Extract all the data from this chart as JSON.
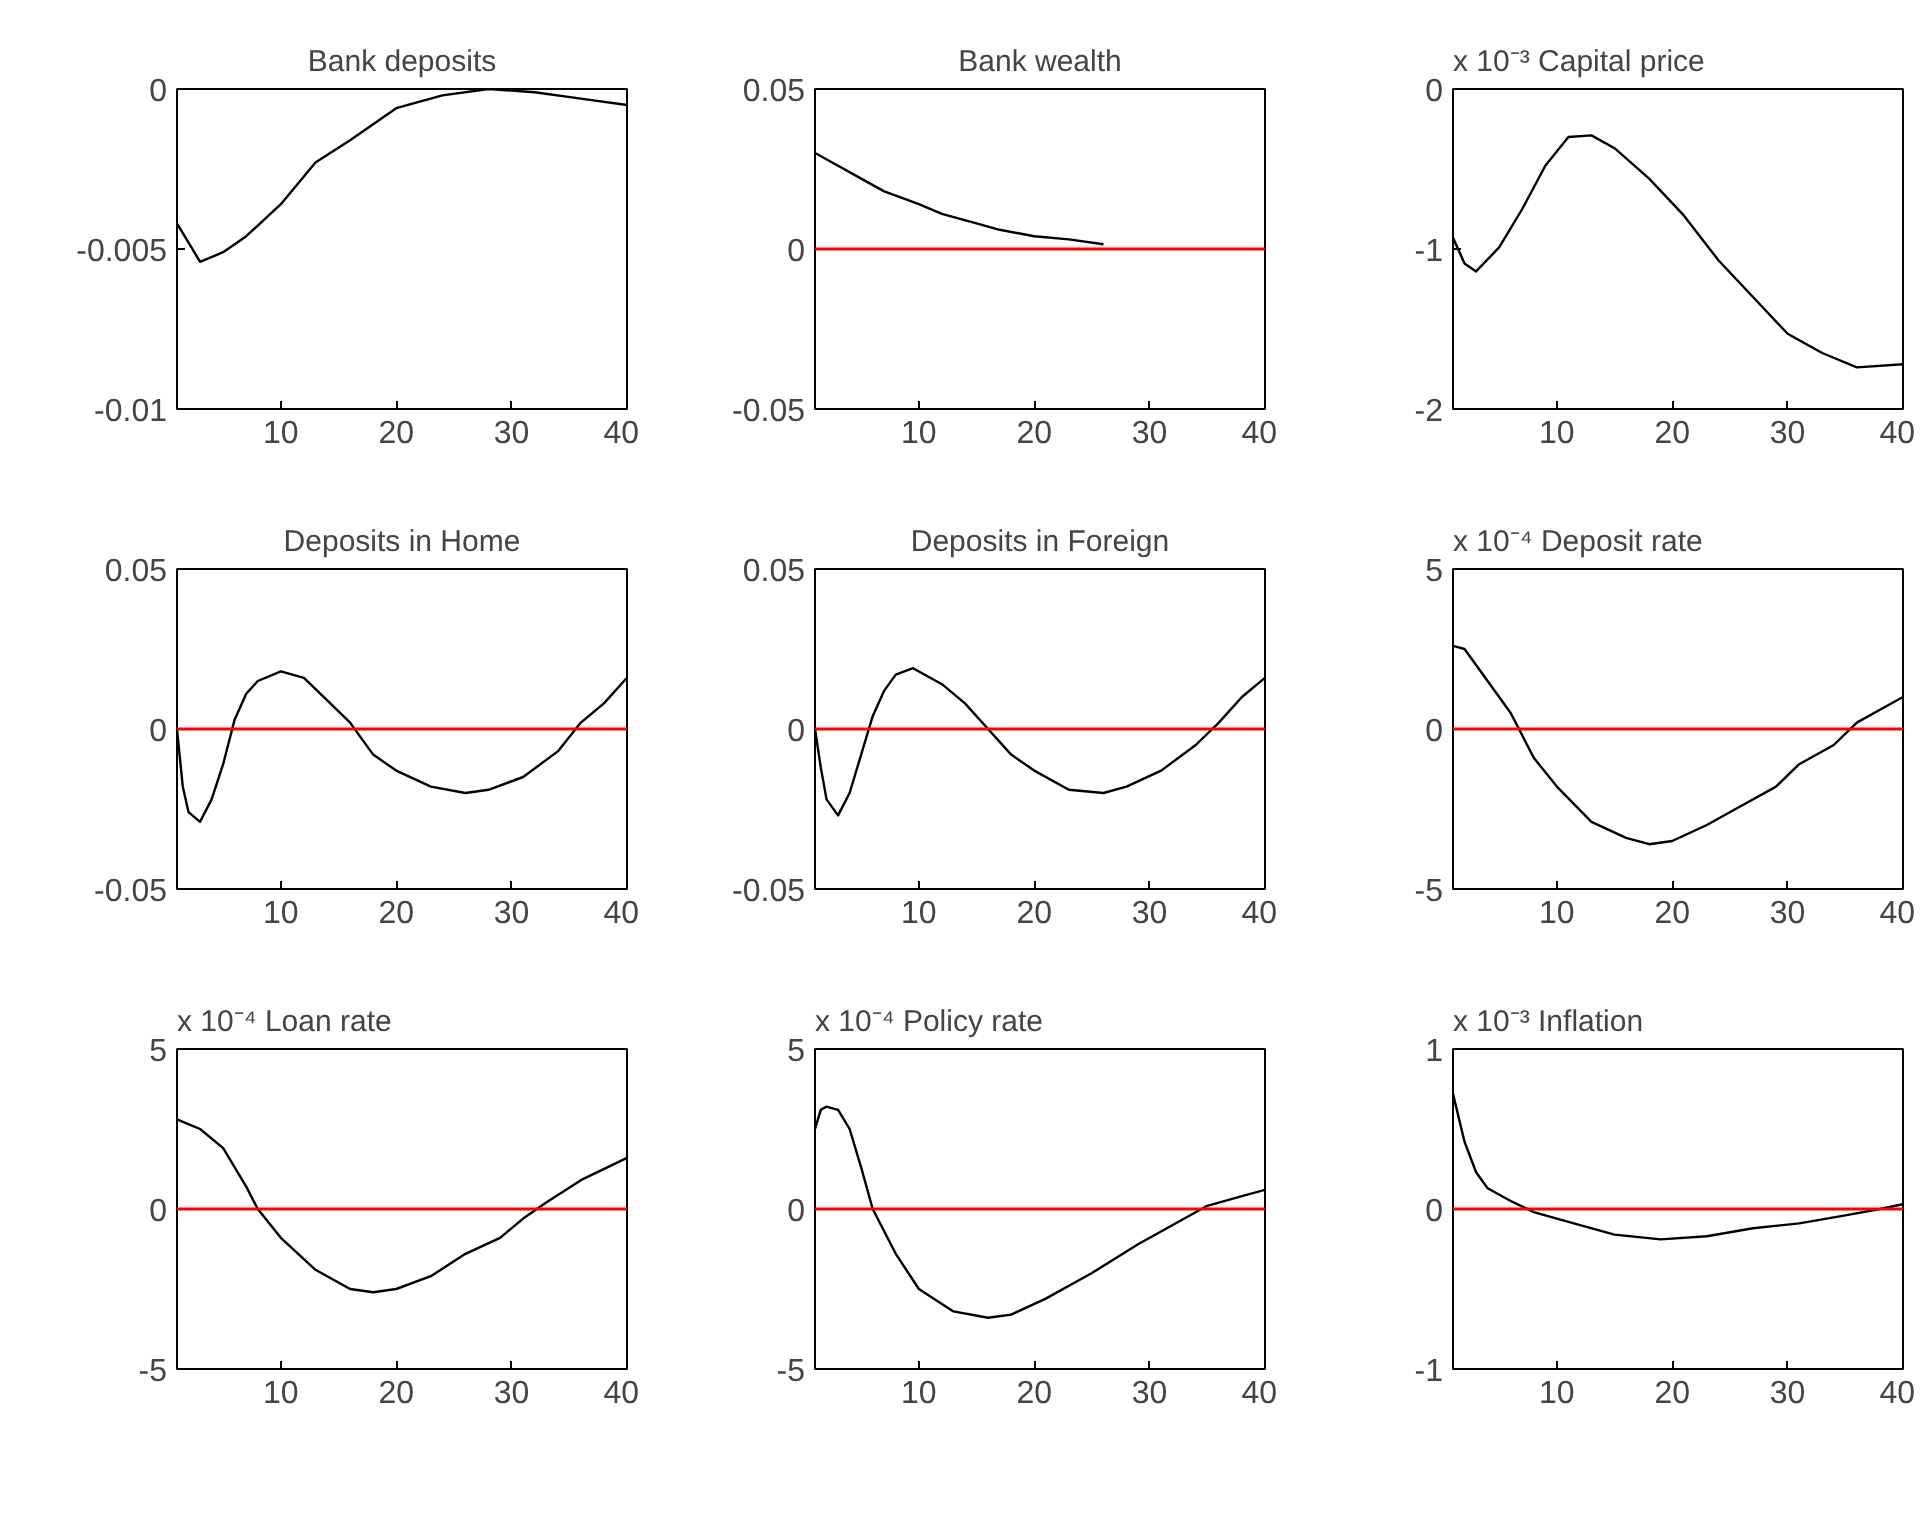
{
  "chart_data": [
    {
      "type": "line",
      "title": "Bank deposits",
      "xlim": [
        1,
        40
      ],
      "xticks": [
        10,
        20,
        30,
        40
      ],
      "ylim": [
        -0.01,
        0
      ],
      "yticks": [
        -0.01,
        -0.005,
        0
      ],
      "series": [
        {
          "color": "#000000",
          "x": [
            1,
            3,
            5,
            7,
            10,
            13,
            16,
            20,
            24,
            28,
            32,
            36,
            40
          ],
          "values": [
            -0.0042,
            -0.0054,
            -0.0051,
            -0.0046,
            -0.0036,
            -0.0023,
            -0.0016,
            -0.0006,
            -0.0002,
            0.0,
            -0.0001,
            -0.0003,
            -0.0005
          ]
        }
      ]
    },
    {
      "type": "line",
      "title": "Bank wealth",
      "xlim": [
        1,
        40
      ],
      "xticks": [
        10,
        20,
        30,
        40
      ],
      "ylim": [
        -0.05,
        0.05
      ],
      "yticks": [
        -0.05,
        0,
        0.05
      ],
      "ref_lines": [
        {
          "axis": "y",
          "value": 0,
          "color": "#ff0000"
        }
      ],
      "series": [
        {
          "color": "#000000",
          "x": [
            1,
            3,
            5,
            7,
            10,
            12,
            15,
            17,
            20,
            23,
            26
          ],
          "values": [
            0.03,
            0.026,
            0.022,
            0.018,
            0.014,
            0.011,
            0.008,
            0.006,
            0.004,
            0.003,
            0.0015
          ]
        }
      ]
    },
    {
      "type": "line",
      "title": "Capital price",
      "annotations": [
        "x 10⁻³"
      ],
      "xlim": [
        1,
        40
      ],
      "xticks": [
        10,
        20,
        30,
        40
      ],
      "ylim": [
        -2,
        0
      ],
      "yticks": [
        -2,
        -1,
        0
      ],
      "series": [
        {
          "color": "#000000",
          "x": [
            1,
            2,
            3,
            5,
            7,
            9,
            11,
            13,
            15,
            18,
            21,
            24,
            27,
            30,
            33,
            36,
            40
          ],
          "values": [
            -0.93,
            -1.09,
            -1.14,
            -0.99,
            -0.75,
            -0.48,
            -0.3,
            -0.29,
            -0.37,
            -0.56,
            -0.79,
            -1.07,
            -1.3,
            -1.53,
            -1.65,
            -1.74,
            -1.72
          ]
        }
      ]
    },
    {
      "type": "line",
      "title": "Deposits in Home",
      "xlim": [
        1,
        40
      ],
      "xticks": [
        10,
        20,
        30,
        40
      ],
      "ylim": [
        -0.05,
        0.05
      ],
      "yticks": [
        -0.05,
        0,
        0.05
      ],
      "ref_lines": [
        {
          "axis": "y",
          "value": 0,
          "color": "#ff0000"
        }
      ],
      "series": [
        {
          "color": "#000000",
          "x": [
            1,
            1.5,
            2,
            3,
            4,
            5,
            6,
            7,
            8,
            10,
            12,
            14,
            16,
            18,
            20,
            23,
            26,
            28,
            31,
            34,
            36,
            38,
            40
          ],
          "values": [
            0,
            -0.018,
            -0.026,
            -0.029,
            -0.022,
            -0.011,
            0.003,
            0.011,
            0.015,
            0.018,
            0.016,
            0.009,
            0.002,
            -0.008,
            -0.013,
            -0.018,
            -0.02,
            -0.019,
            -0.015,
            -0.007,
            0.002,
            0.008,
            0.016
          ]
        }
      ]
    },
    {
      "type": "line",
      "title": "Deposits in Foreign",
      "xlim": [
        1,
        40
      ],
      "xticks": [
        10,
        20,
        30,
        40
      ],
      "ylim": [
        -0.05,
        0.05
      ],
      "yticks": [
        -0.05,
        0,
        0.05
      ],
      "ref_lines": [
        {
          "axis": "y",
          "value": 0,
          "color": "#ff0000"
        }
      ],
      "series": [
        {
          "color": "#000000",
          "x": [
            1,
            1.5,
            2,
            3,
            4,
            5,
            6,
            7,
            8,
            9.5,
            12,
            14,
            16,
            18,
            20,
            23,
            26,
            28,
            31,
            34,
            36,
            38,
            40
          ],
          "values": [
            0,
            -0.012,
            -0.022,
            -0.027,
            -0.02,
            -0.008,
            0.004,
            0.012,
            0.017,
            0.019,
            0.014,
            0.008,
            0.0,
            -0.008,
            -0.013,
            -0.019,
            -0.02,
            -0.018,
            -0.013,
            -0.005,
            0.002,
            0.01,
            0.016
          ]
        }
      ]
    },
    {
      "type": "line",
      "title": "Deposit rate",
      "annotations": [
        "x 10⁻⁴"
      ],
      "xlim": [
        1,
        40
      ],
      "xticks": [
        10,
        20,
        30,
        40
      ],
      "ylim": [
        -5,
        5
      ],
      "yticks": [
        -5,
        0,
        5
      ],
      "ref_lines": [
        {
          "axis": "y",
          "value": 0,
          "color": "#ff0000"
        }
      ],
      "series": [
        {
          "color": "#000000",
          "x": [
            1,
            2,
            4,
            6,
            8,
            10,
            13,
            16,
            18,
            20,
            23,
            26,
            29,
            31,
            34,
            36,
            38,
            40
          ],
          "values": [
            2.6,
            2.5,
            1.5,
            0.5,
            -0.9,
            -1.8,
            -2.9,
            -3.4,
            -3.6,
            -3.5,
            -3.0,
            -2.4,
            -1.8,
            -1.1,
            -0.5,
            0.2,
            0.6,
            1.0
          ]
        }
      ]
    },
    {
      "type": "line",
      "title": "Loan rate",
      "annotations": [
        "x 10⁻⁴"
      ],
      "xlim": [
        1,
        40
      ],
      "xticks": [
        10,
        20,
        30,
        40
      ],
      "ylim": [
        -5,
        5
      ],
      "yticks": [
        -5,
        0,
        5
      ],
      "ref_lines": [
        {
          "axis": "y",
          "value": 0,
          "color": "#ff0000"
        }
      ],
      "series": [
        {
          "color": "#000000",
          "x": [
            1,
            3,
            5,
            7,
            8,
            10,
            13,
            16,
            18,
            20,
            23,
            26,
            29,
            31,
            33,
            36,
            40
          ],
          "values": [
            2.8,
            2.5,
            1.9,
            0.7,
            0,
            -0.9,
            -1.9,
            -2.5,
            -2.6,
            -2.5,
            -2.1,
            -1.4,
            -0.9,
            -0.3,
            0.2,
            0.9,
            1.6
          ]
        }
      ]
    },
    {
      "type": "line",
      "title": "Policy rate",
      "annotations": [
        "x 10⁻⁴"
      ],
      "xlim": [
        1,
        40
      ],
      "xticks": [
        10,
        20,
        30,
        40
      ],
      "ylim": [
        -5,
        5
      ],
      "yticks": [
        -5,
        0,
        5
      ],
      "ref_lines": [
        {
          "axis": "y",
          "value": 0,
          "color": "#ff0000"
        }
      ],
      "series": [
        {
          "color": "#000000",
          "x": [
            1,
            1.5,
            2,
            3,
            4,
            5,
            6,
            8,
            10,
            13,
            16,
            18,
            21,
            25,
            29,
            32,
            35,
            38,
            40
          ],
          "values": [
            2.5,
            3.1,
            3.2,
            3.1,
            2.5,
            1.3,
            0,
            -1.4,
            -2.5,
            -3.2,
            -3.4,
            -3.3,
            -2.8,
            -2.0,
            -1.1,
            -0.5,
            0.1,
            0.4,
            0.6
          ]
        }
      ]
    },
    {
      "type": "line",
      "title": "Inflation",
      "annotations": [
        "x 10⁻³"
      ],
      "xlim": [
        1,
        40
      ],
      "xticks": [
        10,
        20,
        30,
        40
      ],
      "ylim": [
        -1,
        1
      ],
      "yticks": [
        -1,
        0,
        1
      ],
      "ref_lines": [
        {
          "axis": "y",
          "value": 0,
          "color": "#ff0000"
        }
      ],
      "series": [
        {
          "color": "#000000",
          "x": [
            1,
            2,
            3,
            4,
            6,
            8,
            11,
            15,
            19,
            23,
            27,
            31,
            35,
            38,
            40
          ],
          "values": [
            0.72,
            0.42,
            0.23,
            0.13,
            0.05,
            -0.02,
            -0.08,
            -0.16,
            -0.19,
            -0.17,
            -0.12,
            -0.09,
            -0.04,
            0,
            0.03
          ]
        }
      ]
    }
  ]
}
